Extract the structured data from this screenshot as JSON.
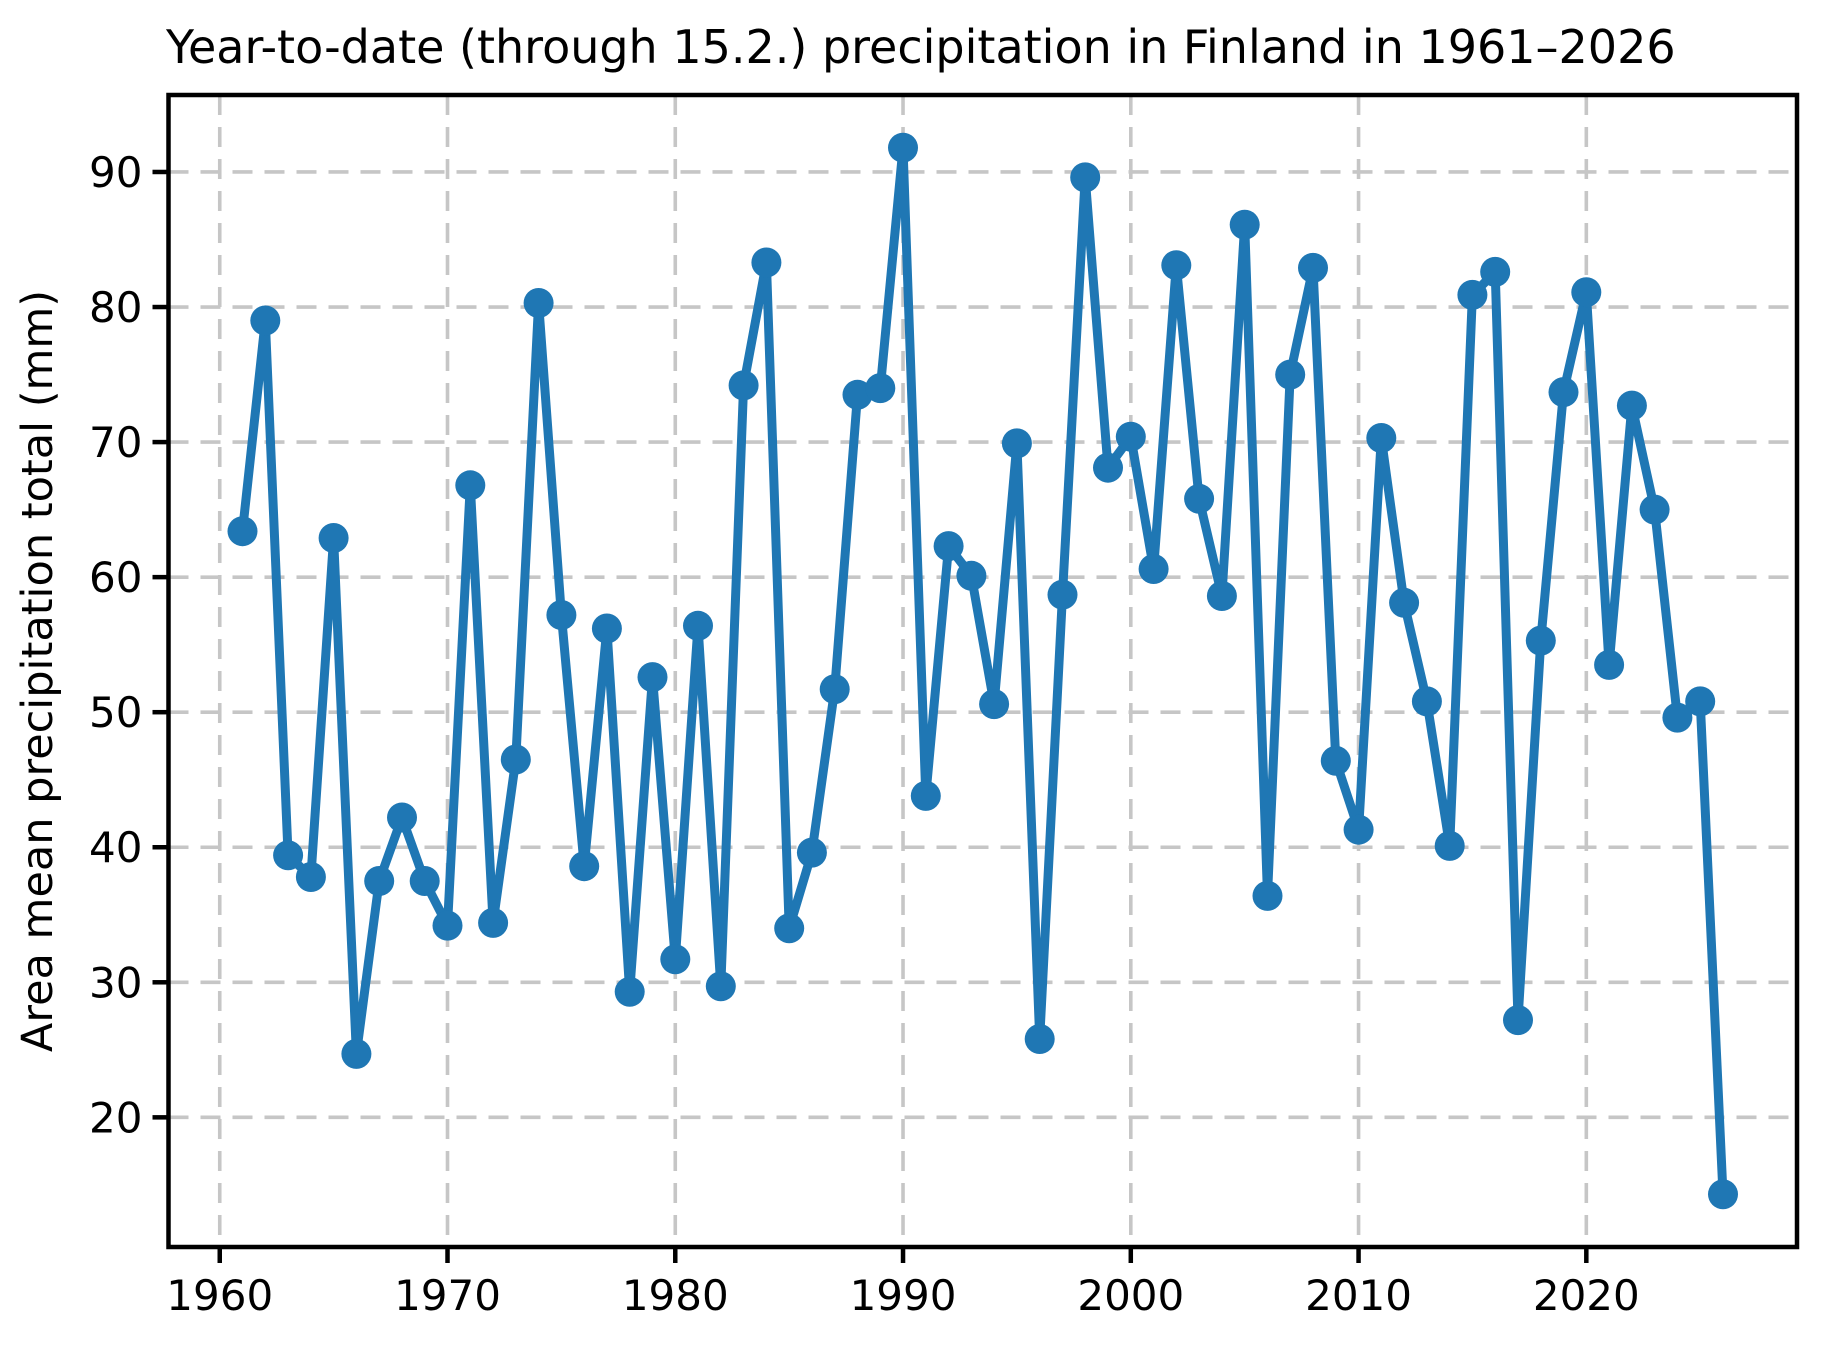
{
  "chart_data": {
    "type": "line",
    "title": "Year-to-date (through 15.2.) precipitation in Finland in 1961–2026",
    "xlabel": "",
    "ylabel": "Area mean precipitation total (mm)",
    "x": [
      1961,
      1962,
      1963,
      1964,
      1965,
      1966,
      1967,
      1968,
      1969,
      1970,
      1971,
      1972,
      1973,
      1974,
      1975,
      1976,
      1977,
      1978,
      1979,
      1980,
      1981,
      1982,
      1983,
      1984,
      1985,
      1986,
      1987,
      1988,
      1989,
      1990,
      1991,
      1992,
      1993,
      1994,
      1995,
      1996,
      1997,
      1998,
      1999,
      2000,
      2001,
      2002,
      2003,
      2004,
      2005,
      2006,
      2007,
      2008,
      2009,
      2010,
      2011,
      2012,
      2013,
      2014,
      2015,
      2016,
      2017,
      2018,
      2019,
      2020,
      2021,
      2022,
      2023,
      2024,
      2025,
      2026
    ],
    "values": [
      63.4,
      79.0,
      39.4,
      37.8,
      62.9,
      24.7,
      37.5,
      42.2,
      37.5,
      34.2,
      66.8,
      34.4,
      46.5,
      80.3,
      57.2,
      38.6,
      56.2,
      29.3,
      52.6,
      31.7,
      56.4,
      29.7,
      74.2,
      83.3,
      34.0,
      39.6,
      51.7,
      73.5,
      74.0,
      91.8,
      43.8,
      62.3,
      60.1,
      50.6,
      69.9,
      25.8,
      58.7,
      89.6,
      68.1,
      70.4,
      60.6,
      83.1,
      65.8,
      58.6,
      86.1,
      36.4,
      75.0,
      82.9,
      46.4,
      41.3,
      70.3,
      58.1,
      50.8,
      40.1,
      80.9,
      82.6,
      27.2,
      55.3,
      73.7,
      81.1,
      53.5,
      72.7,
      65.0,
      49.6,
      50.8,
      14.3
    ],
    "xticks": [
      1960,
      1970,
      1980,
      1990,
      2000,
      2010,
      2020
    ],
    "yticks": [
      20,
      30,
      40,
      50,
      60,
      70,
      80,
      90
    ],
    "xlim": [
      1957.75,
      2029.25
    ],
    "ylim": [
      10.4,
      95.7
    ],
    "grid": "both, dashed",
    "legend": "none",
    "marker": "circle",
    "line_color": "#1f77b4",
    "grid_color": "#c6c6c6",
    "spine_color": "#000000",
    "background_color": "#ffffff"
  }
}
